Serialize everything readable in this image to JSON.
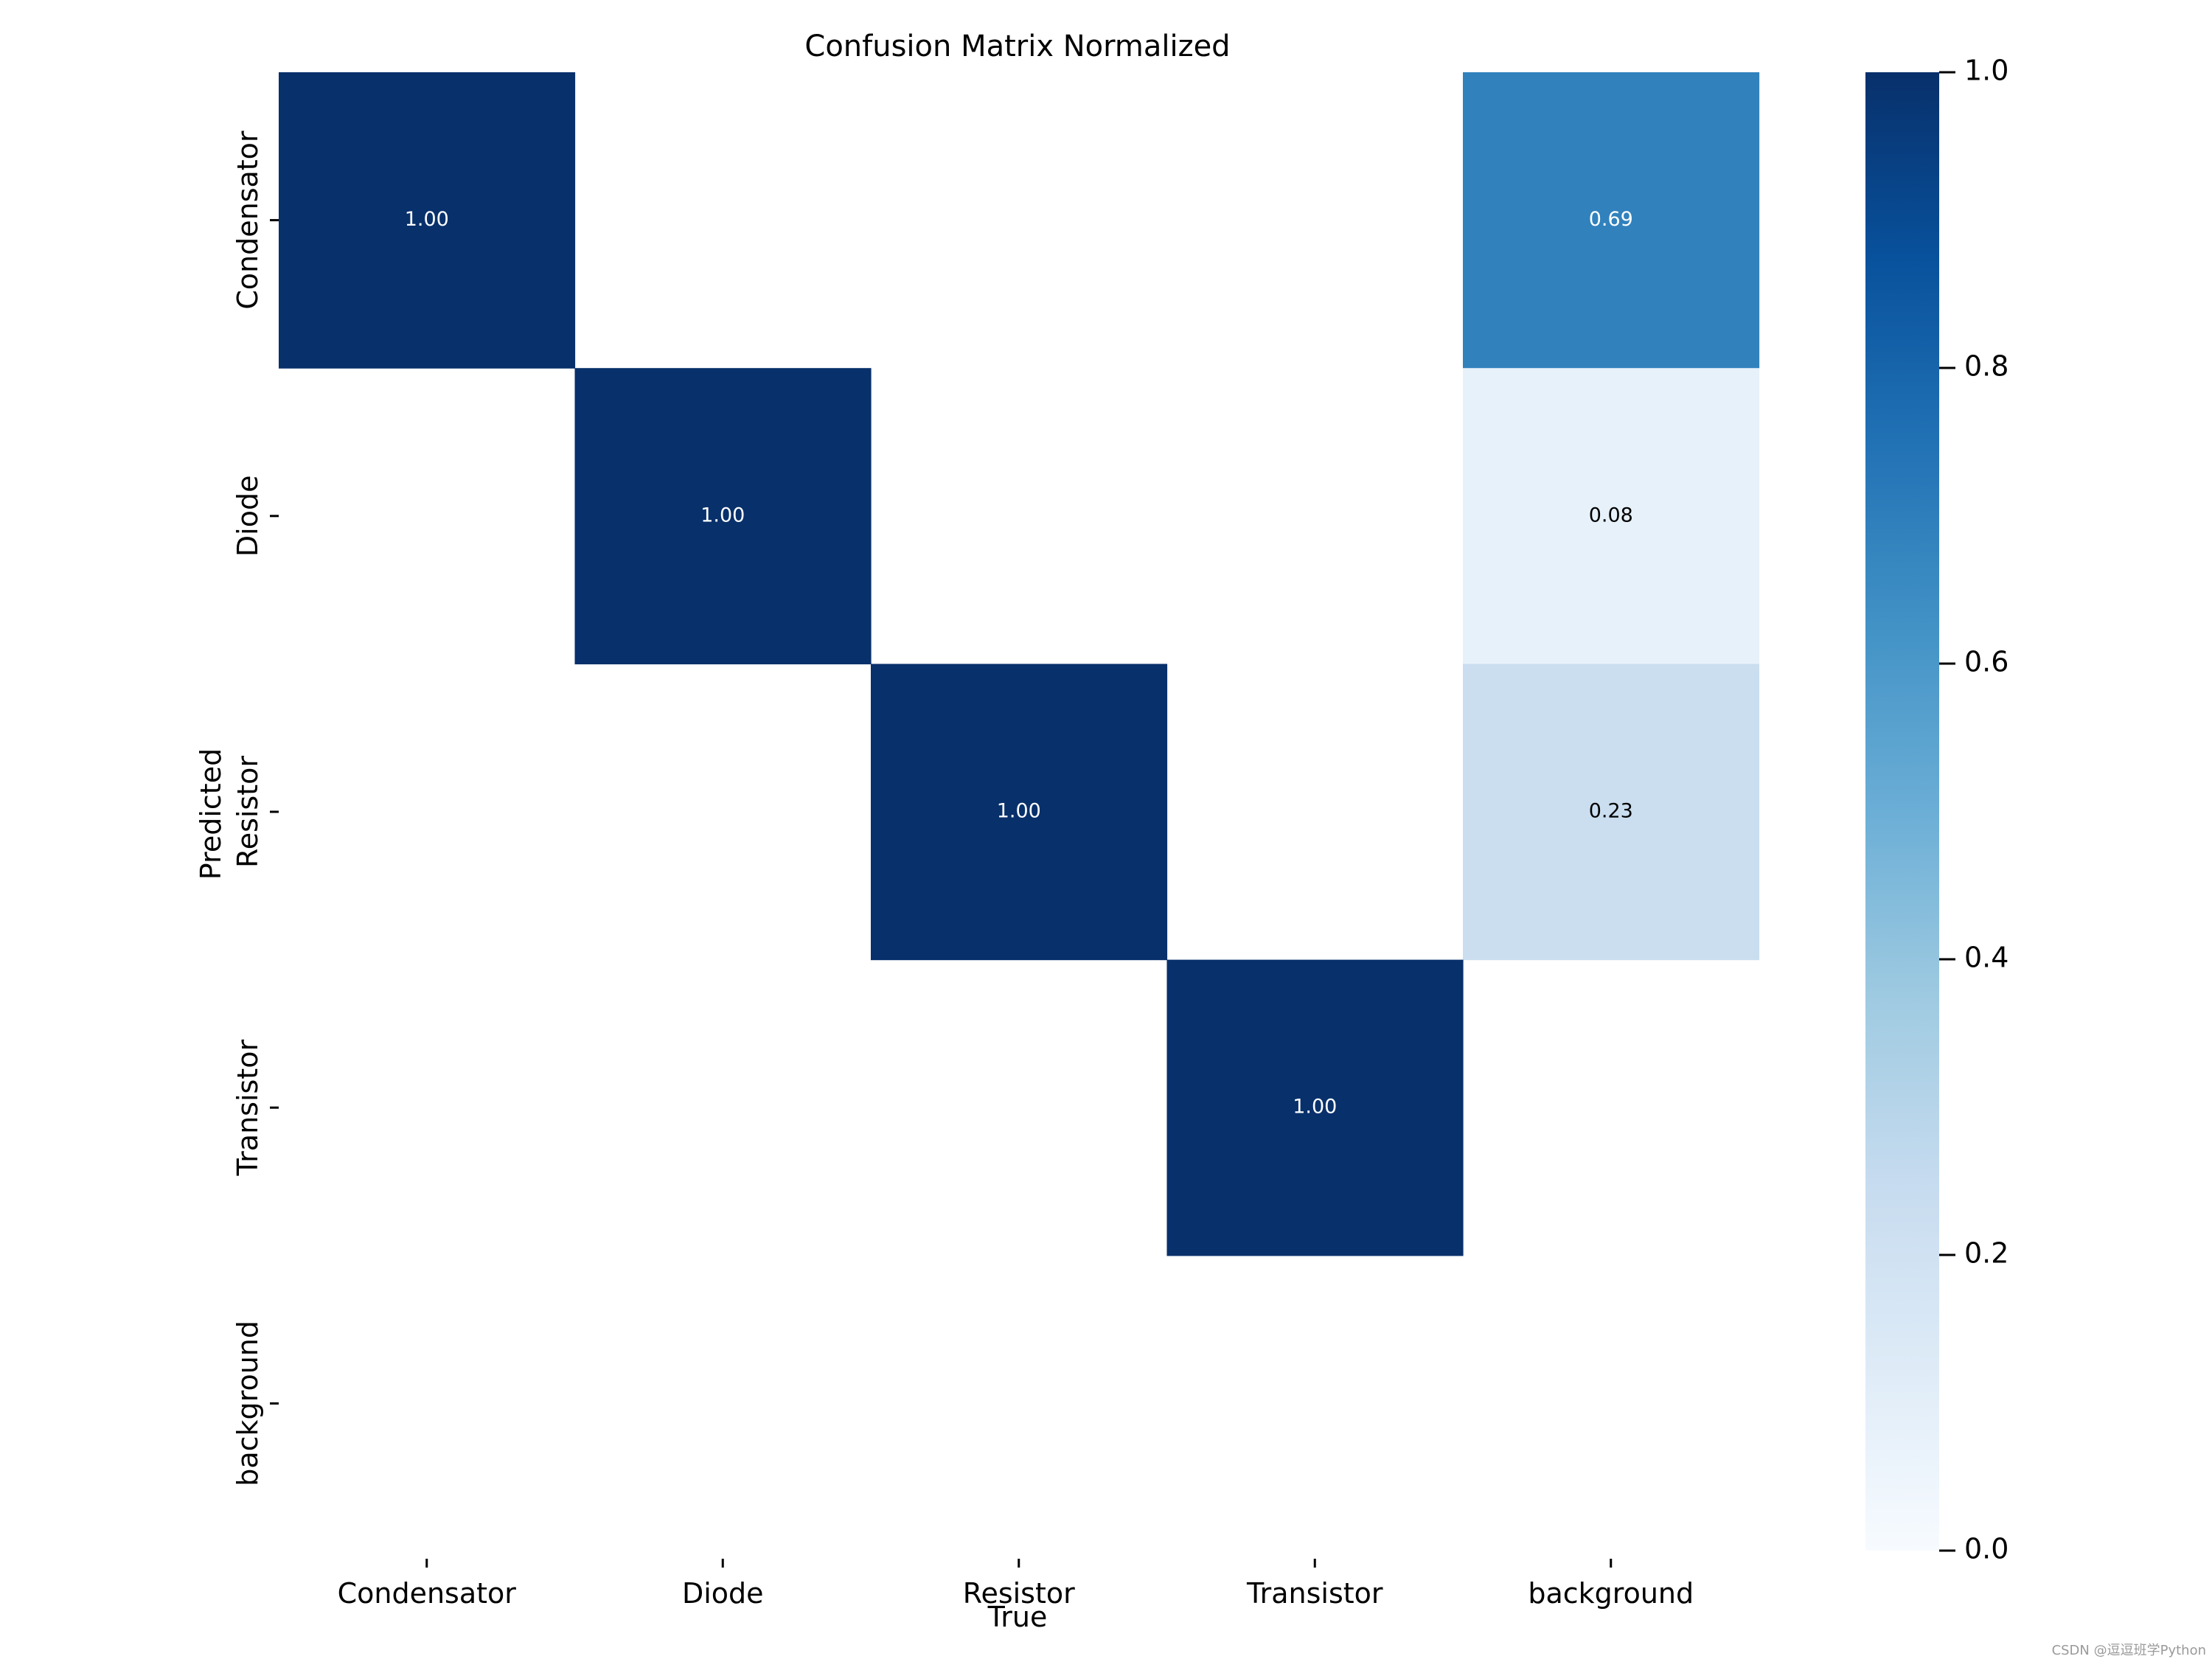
{
  "chart_data": {
    "type": "heatmap",
    "title": "Confusion Matrix Normalized",
    "xlabel": "True",
    "ylabel": "Predicted",
    "x_categories": [
      "Condensator",
      "Diode",
      "Resistor",
      "Transistor",
      "background"
    ],
    "y_categories": [
      "Condensator",
      "Diode",
      "Resistor",
      "Transistor",
      "background"
    ],
    "values": [
      [
        1.0,
        null,
        null,
        null,
        0.69
      ],
      [
        null,
        1.0,
        null,
        null,
        0.08
      ],
      [
        null,
        null,
        1.0,
        null,
        0.23
      ],
      [
        null,
        null,
        null,
        1.0,
        null
      ],
      [
        null,
        null,
        null,
        null,
        null
      ]
    ],
    "value_format": "0.00",
    "colormap": "Blues",
    "colorbar": {
      "range": [
        0.0,
        1.0
      ],
      "ticks": [
        "0.0",
        "0.2",
        "0.4",
        "0.6",
        "0.8",
        "1.0"
      ]
    },
    "grid": false
  },
  "watermark": "CSDN @逗逗班学Python",
  "colors": {
    "blues_stops": [
      "#f7fbff",
      "#deebf7",
      "#c6dbef",
      "#9ecae1",
      "#6baed6",
      "#4292c6",
      "#2171b5",
      "#08519c",
      "#08306b"
    ]
  }
}
